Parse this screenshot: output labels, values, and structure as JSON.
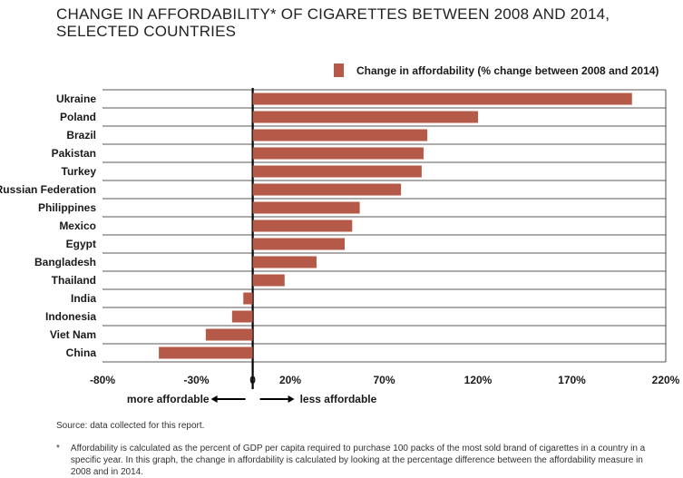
{
  "title": "CHANGE IN AFFORDABILITY* OF CIGARETTES BETWEEN 2008 AND 2014, SELECTED COUNTRIES",
  "legend_label": "Change in affordability (% change between 2008 and 2014)",
  "colors": {
    "bar": "#b55a49",
    "grid": "#222222",
    "text": "#1a1a1a"
  },
  "direction_labels": {
    "left": "more affordable",
    "right": "less affordable"
  },
  "source": "Source: data collected for this report.",
  "footnote_mark": "*",
  "footnote": "Affordability is calculated as the percent of GDP per capita required to purchase 100 packs of the most sold brand of cigarettes in a country in a specific year. In this graph, the change in affordability is calculated by looking at the percentage difference between the affordability measure in 2008 and in 2014.",
  "chart_data": {
    "type": "bar",
    "orientation": "horizontal",
    "categories": [
      "Ukraine",
      "Poland",
      "Brazil",
      "Pakistan",
      "Turkey",
      "Russian Federation",
      "Philippines",
      "Mexico",
      "Egypt",
      "Bangladesh",
      "Thailand",
      "India",
      "Indonesia",
      "Viet Nam",
      "China"
    ],
    "series": [
      {
        "name": "Change in affordability (% change between 2008 and 2014)",
        "values": [
          202,
          120,
          93,
          91,
          90,
          79,
          57,
          53,
          49,
          34,
          17,
          -5,
          -11,
          -25,
          -50
        ]
      }
    ],
    "x_ticks": [
      "-80%",
      "-30%",
      "0",
      "20%",
      "70%",
      "120%",
      "170%",
      "220%"
    ],
    "x_tick_values": [
      -80,
      -30,
      0,
      20,
      70,
      120,
      170,
      220
    ],
    "xlim": [
      -80,
      220
    ],
    "grid": true
  }
}
